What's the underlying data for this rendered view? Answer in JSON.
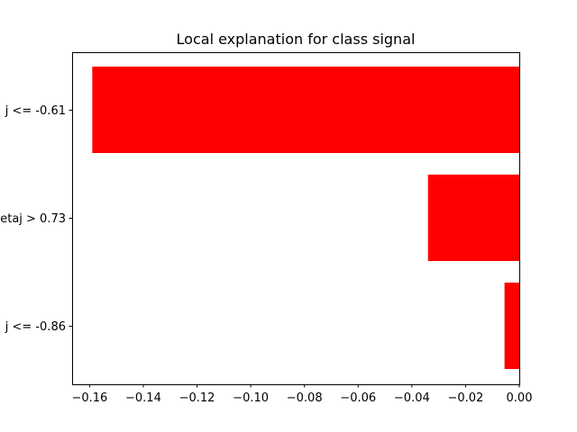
{
  "chart_data": {
    "type": "bar",
    "orientation": "horizontal",
    "title": "Local explanation for class signal",
    "categories": [
      "j <= -0.61",
      "etaj > 0.73",
      "j <= -0.86"
    ],
    "values": [
      -0.159,
      -0.034,
      -0.0055
    ],
    "xlim": [
      -0.1665,
      0.0
    ],
    "xticks": [
      -0.16,
      -0.14,
      -0.12,
      -0.1,
      -0.08,
      -0.06,
      -0.04,
      -0.02,
      0.0
    ],
    "xtick_labels": [
      "−0.16",
      "−0.14",
      "−0.12",
      "−0.10",
      "−0.08",
      "−0.06",
      "−0.04",
      "−0.02",
      "0.00"
    ],
    "bar_color": "#ff0000",
    "grid": false,
    "xlabel": "",
    "ylabel": ""
  }
}
